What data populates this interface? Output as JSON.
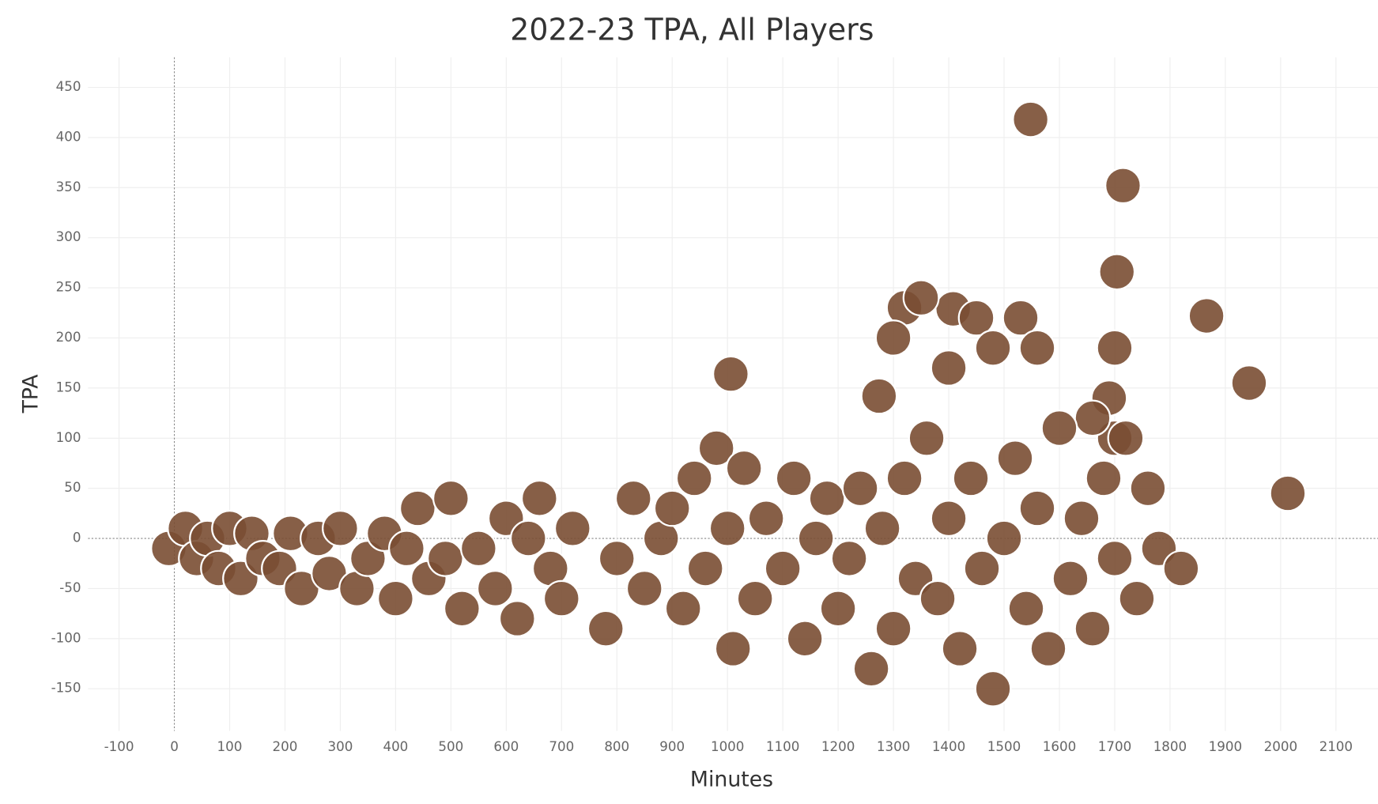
{
  "chart_data": {
    "type": "scatter",
    "title": "2022-23 TPA, All Players",
    "x_label": "Minutes",
    "y_label": "TPA",
    "color": "#7a4e33",
    "grid": true,
    "xlim": [
      -156,
      2176
    ],
    "ylim": [
      -192,
      480
    ],
    "xticks": [
      -100,
      0,
      100,
      200,
      300,
      400,
      500,
      600,
      700,
      800,
      900,
      1000,
      1100,
      1200,
      1300,
      1400,
      1500,
      1600,
      1700,
      1800,
      1900,
      2000,
      2100
    ],
    "yticks": [
      -150,
      -100,
      -50,
      0,
      50,
      100,
      150,
      200,
      250,
      300,
      350,
      400,
      450
    ],
    "x": [
      1548,
      1715,
      1704,
      1866,
      1943,
      2013,
      1006,
      1274,
      1408,
      1320,
      1350,
      1300,
      1400,
      1450,
      1480,
      1530,
      1560,
      1700,
      1690,
      1700,
      1660,
      -10,
      20,
      40,
      60,
      80,
      100,
      120,
      140,
      160,
      190,
      210,
      230,
      260,
      280,
      300,
      330,
      350,
      380,
      400,
      420,
      440,
      460,
      490,
      500,
      520,
      550,
      580,
      600,
      620,
      640,
      660,
      680,
      700,
      720,
      780,
      800,
      830,
      850,
      880,
      900,
      920,
      940,
      960,
      980,
      1000,
      1010,
      1030,
      1050,
      1070,
      1100,
      1120,
      1140,
      1160,
      1180,
      1200,
      1220,
      1240,
      1260,
      1280,
      1300,
      1320,
      1340,
      1360,
      1380,
      1400,
      1420,
      1440,
      1460,
      1480,
      1500,
      1520,
      1540,
      1560,
      1580,
      1600,
      1620,
      1640,
      1660,
      1680,
      1700,
      1720,
      1740,
      1760,
      1780,
      1820
    ],
    "values": [
      418,
      352,
      266,
      222,
      155,
      45,
      164,
      142,
      229,
      230,
      240,
      200,
      170,
      220,
      190,
      220,
      190,
      190,
      140,
      100,
      120,
      -10,
      10,
      -20,
      0,
      -30,
      10,
      -40,
      5,
      -20,
      -30,
      5,
      -50,
      0,
      -35,
      10,
      -50,
      -20,
      5,
      -60,
      -10,
      30,
      -40,
      -20,
      40,
      -70,
      -10,
      -50,
      20,
      -80,
      0,
      40,
      -30,
      -60,
      10,
      -90,
      -20,
      40,
      -50,
      0,
      30,
      -70,
      60,
      -30,
      90,
      10,
      -110,
      70,
      -60,
      20,
      -30,
      60,
      -100,
      0,
      40,
      -70,
      -20,
      50,
      -130,
      10,
      -90,
      60,
      -40,
      100,
      -60,
      20,
      -110,
      60,
      -30,
      -150,
      0,
      80,
      -70,
      30,
      -110,
      110,
      -40,
      20,
      -90,
      60,
      -20,
      100,
      -60,
      50,
      -10,
      -30
    ]
  }
}
